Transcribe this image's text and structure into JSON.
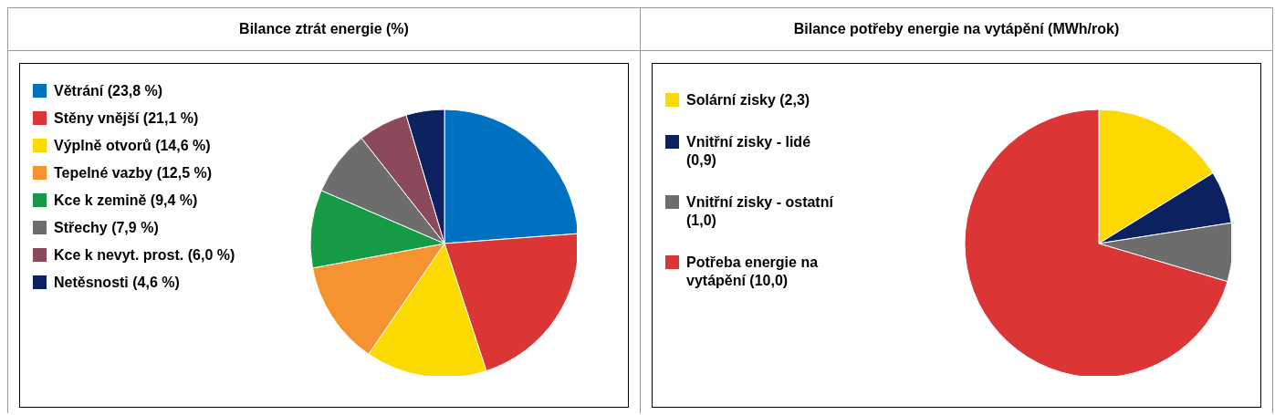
{
  "chart_data": [
    {
      "type": "pie",
      "title": "Bilance ztrát energie (%)",
      "legend": "left",
      "categories": [
        "Větrání (23,8 %)",
        "Stěny vnější (21,1 %)",
        "Výplně otvorů (14,6 %)",
        "Tepelné vazby (12,5 %)",
        "Kce k zemině (9,4 %)",
        "Střechy (7,9 %)",
        "Kce k nevyt. prost. (6,0 %)",
        "Netěsnosti (4,6 %)"
      ],
      "values": [
        23.8,
        21.1,
        14.6,
        12.5,
        9.4,
        7.9,
        6.0,
        4.6
      ],
      "colors": [
        "#0070c0",
        "#dc3535",
        "#fcd900",
        "#f59331",
        "#159a45",
        "#6d6d6d",
        "#8b4a5a",
        "#0b2160"
      ]
    },
    {
      "type": "pie",
      "title": "Bilance potřeby energie na vytápění (MWh/rok)",
      "legend": "left",
      "categories": [
        "Solární zisky (2,3)",
        "Vnitřní zisky - lidé (0,9)",
        "Vnitřní zisky - ostatní (1,0)",
        "Potřeba energie na vytápění (10,0)"
      ],
      "values": [
        2.3,
        0.9,
        1.0,
        10.0
      ],
      "colors": [
        "#fcd900",
        "#0b2160",
        "#6d6d6d",
        "#dc3535"
      ]
    }
  ]
}
